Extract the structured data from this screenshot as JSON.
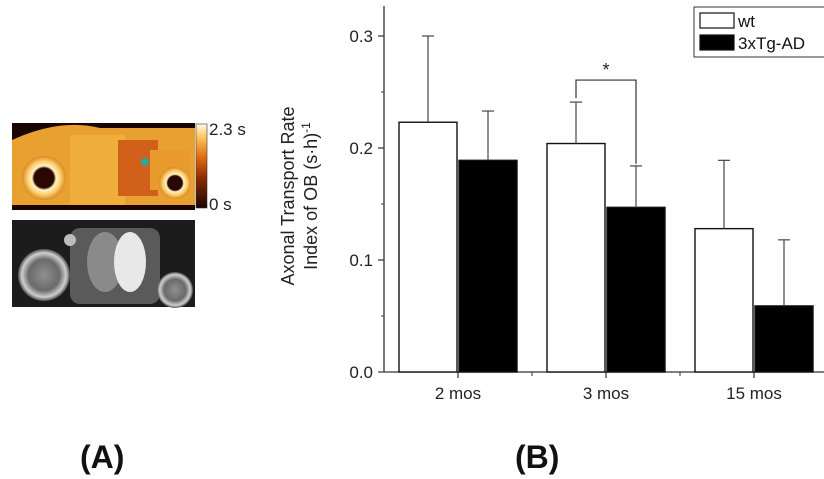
{
  "panel_a": {
    "label": "(A)",
    "colorbar_max": "2.3 s",
    "colorbar_min": "0 s"
  },
  "panel_b": {
    "label": "(B)"
  },
  "chart_data": {
    "type": "bar",
    "title": "",
    "ylabel": "Axonal Transport Rate Index of OB (s·h)-1",
    "ylabel_line1": "Axonal Transport Rate",
    "ylabel_line2": "Index of OB (s·h)",
    "ylabel_sup": "-1",
    "xlabel": "",
    "ylim": [
      0,
      0.32
    ],
    "yticks": [
      0.0,
      0.1,
      0.2,
      0.3
    ],
    "ytick_labels": [
      "0.0",
      "0.1",
      "0.2",
      "0.3"
    ],
    "categories": [
      "2 mos",
      "3 mos",
      "15 mos"
    ],
    "series": [
      {
        "name": "wt",
        "values": [
          0.223,
          0.204,
          0.128
        ],
        "errors": [
          0.077,
          0.037,
          0.061
        ],
        "color": "#ffffff"
      },
      {
        "name": "3xTg-AD",
        "values": [
          0.189,
          0.147,
          0.059
        ],
        "errors": [
          0.044,
          0.037,
          0.059
        ],
        "color": "#000000"
      }
    ],
    "legend_position": "top-right",
    "significance": {
      "category": "3 mos",
      "marker": "*"
    },
    "grid": false
  }
}
